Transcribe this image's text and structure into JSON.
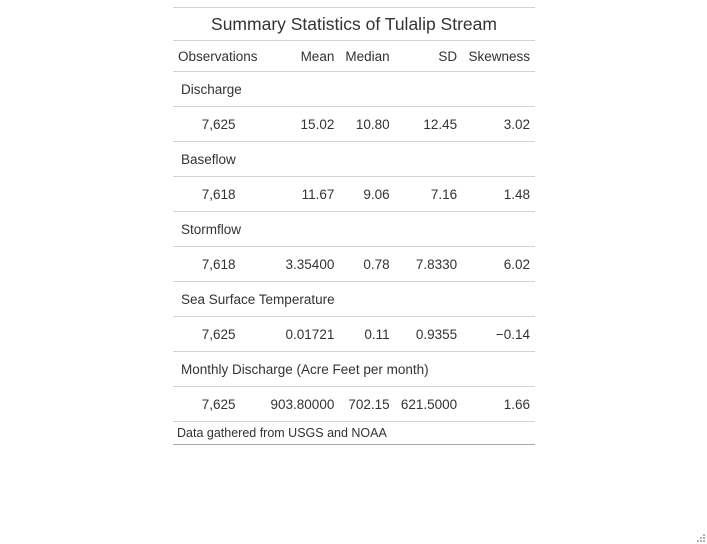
{
  "title": "Summary Statistics of Tulalip Stream",
  "columns": [
    "Observations",
    "Mean",
    "Median",
    "SD",
    "Skewness"
  ],
  "groups": [
    {
      "label": "Discharge",
      "row": [
        "7,625",
        "15.02",
        "10.80",
        "12.45",
        "3.02"
      ]
    },
    {
      "label": "Baseflow",
      "row": [
        "7,618",
        "11.67",
        "9.06",
        "7.16",
        "1.48"
      ]
    },
    {
      "label": "Stormflow",
      "row": [
        "7,618",
        "3.35400",
        "0.78",
        "7.8330",
        "6.02"
      ]
    },
    {
      "label": "Sea Surface Temperature",
      "row": [
        "7,625",
        "0.01721",
        "0.11",
        "0.9355",
        "−0.14"
      ]
    },
    {
      "label": "Monthly Discharge (Acre Feet per month)",
      "row": [
        "7,625",
        "903.80000",
        "702.15",
        "621.5000",
        "1.66"
      ]
    }
  ],
  "source_note": "Data gathered from USGS and NOAA"
}
